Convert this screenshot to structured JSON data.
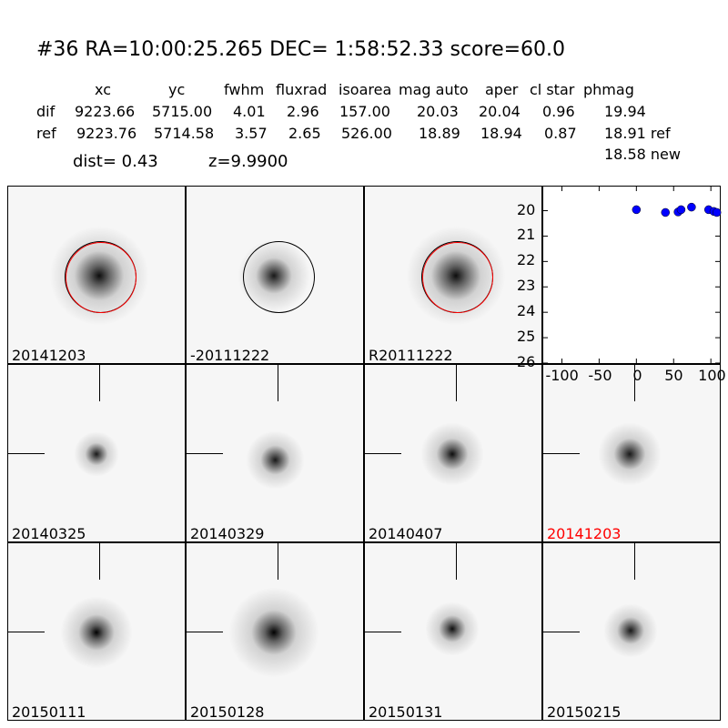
{
  "header": {
    "title": "#36   RA=10:00:25.265 DEC= 1:58:52.33      score=60.0",
    "columns": [
      "xc",
      "yc",
      "fwhm",
      "fluxrad",
      "isoarea",
      "mag auto",
      "aper",
      "cl star",
      "phmag"
    ],
    "rows": [
      {
        "label": "dif",
        "values": [
          "9223.66",
          "5715.00",
          "4.01",
          "2.96",
          "157.00",
          "20.03",
          "20.04",
          "0.96",
          "19.94"
        ]
      },
      {
        "label": "ref",
        "values": [
          "9223.76",
          "5714.58",
          "3.57",
          "2.65",
          "526.00",
          "18.89",
          "18.94",
          "0.87",
          "18.91 ref"
        ]
      }
    ],
    "extra_phmag": "18.58 new",
    "dist": "dist=  0.43",
    "z": "z=9.9900"
  },
  "panels": [
    {
      "label": "20141203",
      "circle": "red-black",
      "label_color": "#000000"
    },
    {
      "label": "-20111222",
      "circle": "black",
      "label_color": "#000000"
    },
    {
      "label": "R20111222",
      "circle": "red-black",
      "label_color": "#000000"
    },
    {
      "label": "20140325",
      "label_color": "#000000"
    },
    {
      "label": "20140329",
      "label_color": "#000000"
    },
    {
      "label": "20140407",
      "label_color": "#000000"
    },
    {
      "label": "20141203",
      "label_color": "#ff0000"
    },
    {
      "label": "20150111",
      "label_color": "#000000"
    },
    {
      "label": "20150128",
      "label_color": "#000000"
    },
    {
      "label": "20150131",
      "label_color": "#000000"
    },
    {
      "label": "20150215",
      "label_color": "#000000"
    }
  ],
  "chart_data": {
    "type": "scatter",
    "x": [
      0,
      39,
      56,
      60,
      74,
      97,
      104,
      108
    ],
    "y": [
      19.96,
      20.07,
      20.05,
      19.96,
      19.86,
      19.96,
      20.03,
      20.07
    ],
    "xlim": [
      -125,
      112
    ],
    "ylim": [
      26,
      19.05
    ],
    "y_inverted": true,
    "xticks": [
      "-100",
      "-50",
      "0",
      "50",
      "100"
    ],
    "xtick_values": [
      -100,
      -50,
      0,
      50,
      100
    ],
    "yticks": [
      "20",
      "21",
      "22",
      "23",
      "24",
      "25",
      "26"
    ],
    "ytick_values": [
      20,
      21,
      22,
      23,
      24,
      25,
      26
    ],
    "marker_color": "#0000ff",
    "grid": false
  }
}
